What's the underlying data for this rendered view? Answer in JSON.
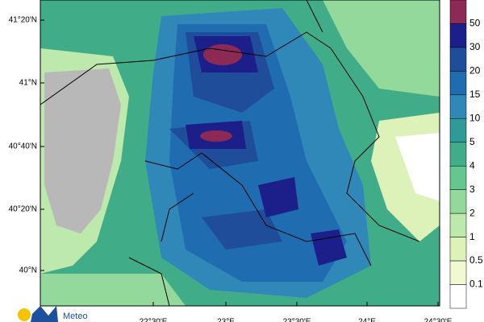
{
  "map": {
    "lat_labels": [
      "41°20'N",
      "41°N",
      "40°40'N",
      "40°20'N",
      "40°N"
    ],
    "lon_labels": [
      "22°30'E",
      "23°E",
      "23°30'E",
      "24°E",
      "24°30'E"
    ],
    "legend": {
      "levels": [
        50,
        30,
        20,
        15,
        10,
        5,
        4,
        3,
        2,
        1,
        0.5,
        0.1
      ],
      "colors": [
        "#8c2a55",
        "#1c1f8a",
        "#1f4d9a",
        "#1f6cb0",
        "#3088b8",
        "#2f9a98",
        "#40ad88",
        "#66c690",
        "#94d99c",
        "#bde9ad",
        "#dcf2b8",
        "#f1f9d2",
        "#ffffff"
      ]
    }
  },
  "logo": {
    "text": "Meteo"
  }
}
